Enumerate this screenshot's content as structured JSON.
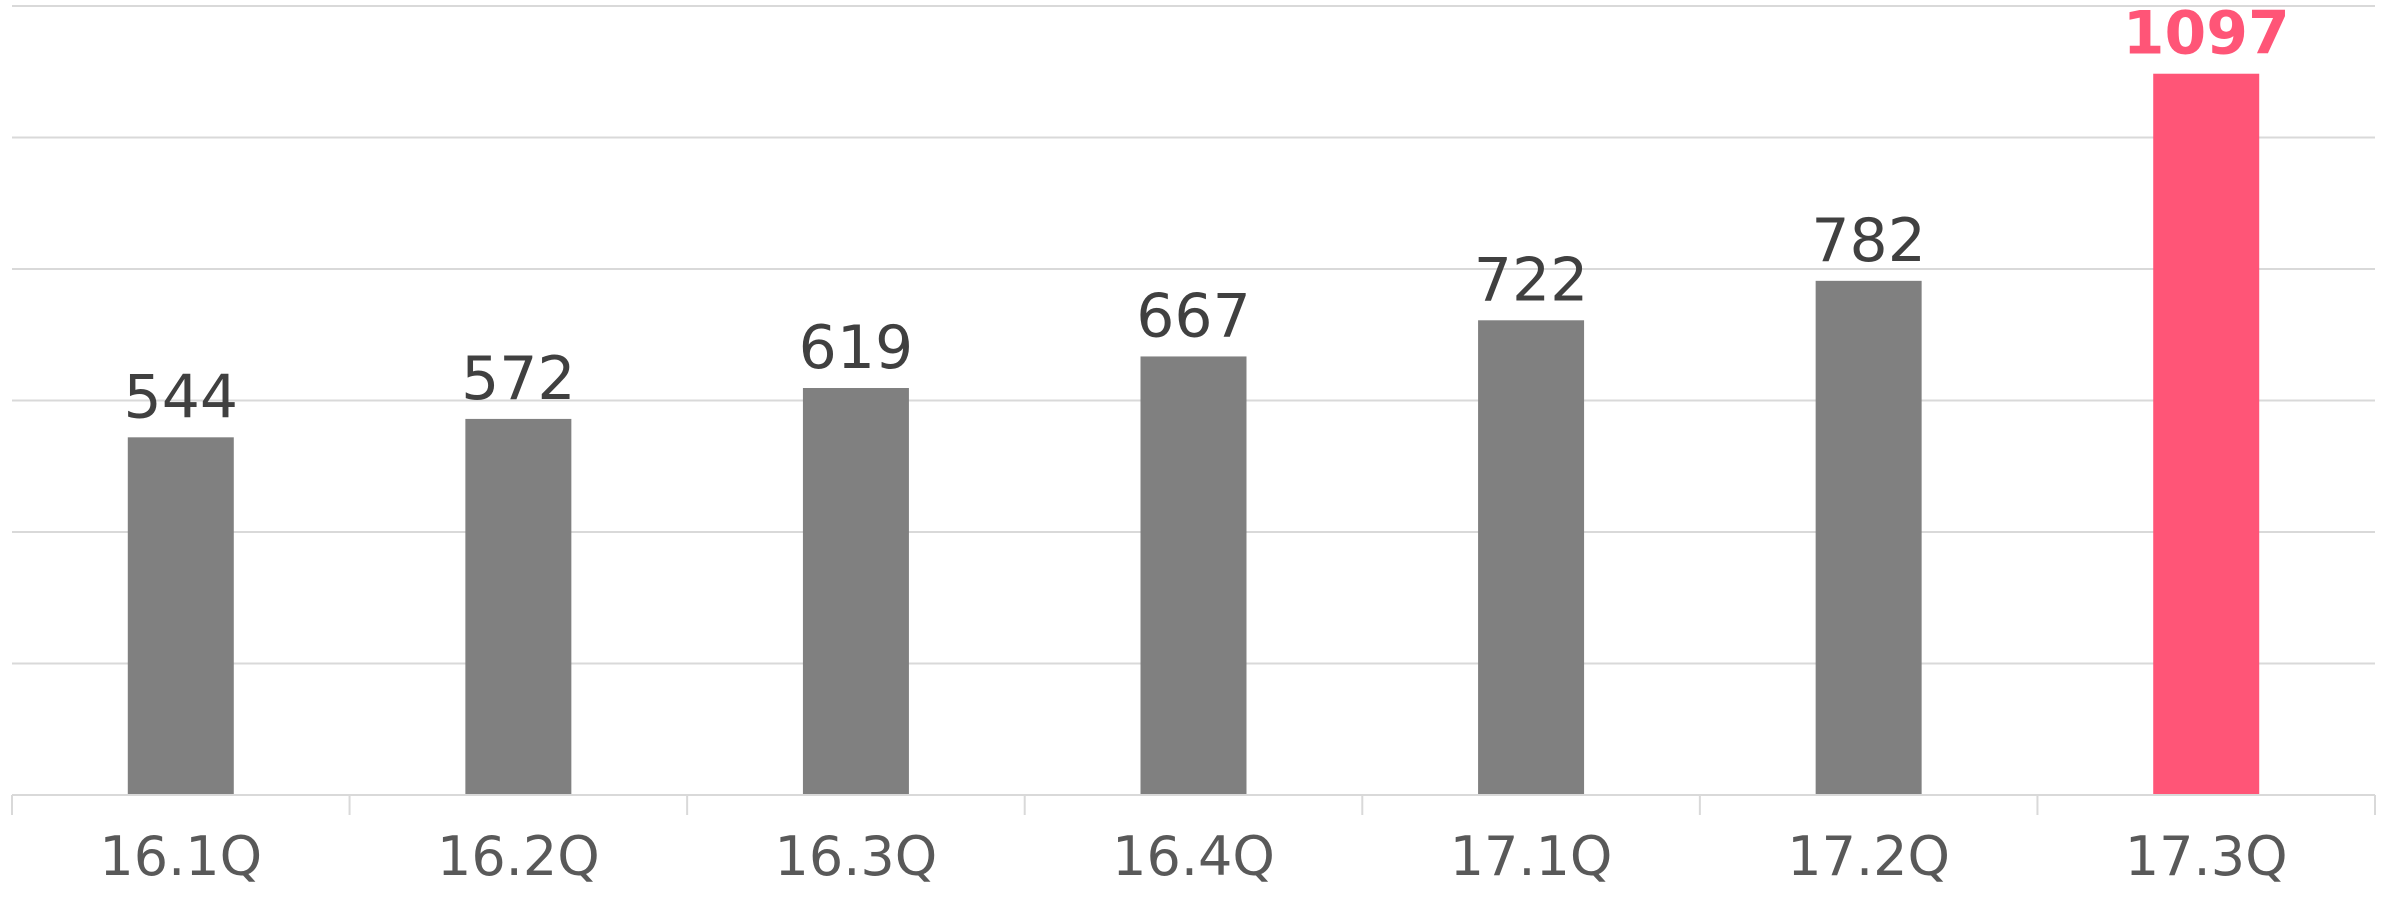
{
  "chart_data": {
    "type": "bar",
    "categories": [
      "16.1Q",
      "16.2Q",
      "16.3Q",
      "16.4Q",
      "17.1Q",
      "17.2Q",
      "17.3Q"
    ],
    "values": [
      544,
      572,
      619,
      667,
      722,
      782,
      1097
    ],
    "data_labels": [
      "544",
      "572",
      "619",
      "667",
      "722",
      "782",
      "1097"
    ],
    "ylim": [
      0,
      1200
    ],
    "y_gridline_step": 200,
    "grid": true,
    "show_y_tick_labels": false,
    "highlight_index": 6,
    "colors": {
      "bar": "#808080",
      "highlight_bar": "#ff5577",
      "label": "#404040",
      "highlight_label": "#ff5577",
      "category_label": "#595959",
      "grid": "#d9d9d9"
    }
  }
}
